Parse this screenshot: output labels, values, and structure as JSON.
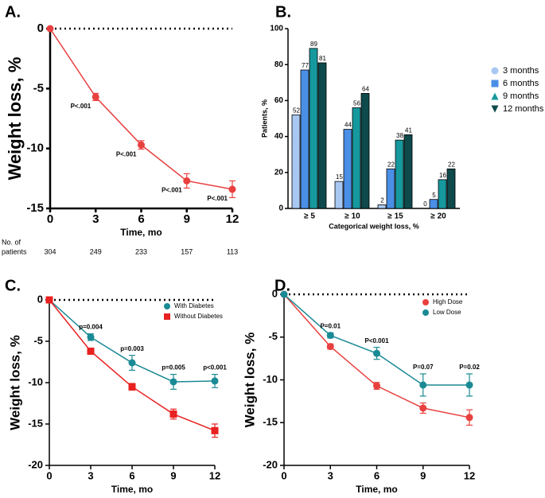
{
  "chart_data": [
    {
      "type": "line",
      "panel": "A.",
      "ylabel": "Weight loss, %",
      "xlabel": "Time, mo",
      "x": [
        0,
        3,
        6,
        9,
        12
      ],
      "xlim": [
        0,
        12
      ],
      "xticks": [
        0,
        3,
        6,
        9,
        12
      ],
      "ylim": [
        -15,
        0
      ],
      "yticks": [
        -15,
        -10,
        -5,
        0
      ],
      "zero_line": true,
      "series": [
        {
          "name": null,
          "color": "#e8403f",
          "marker": "circle",
          "values": [
            0,
            -5.7,
            -9.7,
            -12.7,
            -13.4
          ],
          "errors": [
            0,
            0.3,
            0.35,
            0.6,
            0.7
          ]
        }
      ],
      "point_labels": [
        null,
        "P<.001",
        "P<.001",
        "P<.001",
        "P<.001"
      ],
      "table": {
        "label_lines": [
          "No. of",
          "patients"
        ],
        "values": [
          304,
          249,
          233,
          157,
          113
        ]
      }
    },
    {
      "type": "bar",
      "panel": "B.",
      "ylabel": "Patients, %",
      "xlabel": "Categorical weight loss, %",
      "categories": [
        "≥ 5",
        "≥ 10",
        "≥ 15",
        "≥ 20"
      ],
      "ylim": [
        0,
        100
      ],
      "yticks": [
        0,
        20,
        40,
        60,
        80,
        100
      ],
      "series": [
        {
          "name": "3 months",
          "color": "#a8c8f2",
          "marker": "circle",
          "values": [
            52,
            15,
            2,
            0
          ]
        },
        {
          "name": "6 months",
          "color": "#4a8fe6",
          "marker": "square",
          "values": [
            77,
            44,
            22,
            5
          ]
        },
        {
          "name": "9 months",
          "color": "#16999e",
          "marker": "triangle",
          "values": [
            89,
            56,
            38,
            16
          ]
        },
        {
          "name": "12 months",
          "color": "#0e4a4c",
          "marker": "triangle-down",
          "values": [
            81,
            64,
            41,
            22
          ]
        }
      ]
    },
    {
      "type": "line",
      "panel": "C.",
      "ylabel": "Weight loss, %",
      "xlabel": "Time, mo",
      "x": [
        0,
        3,
        6,
        9,
        12
      ],
      "xlim": [
        0,
        12
      ],
      "xticks": [
        0,
        3,
        6,
        9,
        12
      ],
      "ylim": [
        -20,
        0
      ],
      "yticks": [
        -20,
        -15,
        -10,
        -5,
        0
      ],
      "zero_line": true,
      "series": [
        {
          "name": "With Diabetes",
          "color": "#1a8a94",
          "marker": "circle",
          "values": [
            0,
            -4.5,
            -7.6,
            -9.9,
            -9.8
          ],
          "errors": [
            0,
            0.4,
            0.9,
            0.9,
            0.8
          ]
        },
        {
          "name": "Without Diabetes",
          "color": "#e8201f",
          "marker": "square",
          "values": [
            0,
            -6.2,
            -10.5,
            -13.8,
            -15.8
          ],
          "errors": [
            0,
            0.2,
            0.4,
            0.6,
            0.8
          ]
        }
      ],
      "p_labels": [
        null,
        "p=0.004",
        "p=0.003",
        "p=0.005",
        "p<0.001"
      ]
    },
    {
      "type": "line",
      "panel": "D.",
      "ylabel": "Weight loss, %",
      "xlabel": "Time, mo",
      "x": [
        0,
        3,
        6,
        9,
        12
      ],
      "xlim": [
        0,
        12
      ],
      "xticks": [
        0,
        3,
        6,
        9,
        12
      ],
      "ylim": [
        -20,
        0
      ],
      "yticks": [
        -20,
        -15,
        -10,
        -5,
        0
      ],
      "zero_line": true,
      "series": [
        {
          "name": "High Dose",
          "color": "#e8403f",
          "marker": "circle",
          "values": [
            0,
            -6.1,
            -10.7,
            -13.3,
            -14.4
          ],
          "errors": [
            0,
            0.3,
            0.4,
            0.6,
            0.9
          ]
        },
        {
          "name": "Low Dose",
          "color": "#1a8a94",
          "marker": "circle",
          "values": [
            0,
            -4.8,
            -6.9,
            -10.6,
            -10.6
          ],
          "errors": [
            0,
            0.3,
            0.7,
            1.3,
            1.3
          ]
        }
      ],
      "p_labels": [
        null,
        "P=0.01",
        "P<0.001",
        "P=0.07",
        "P=0.02"
      ]
    }
  ]
}
